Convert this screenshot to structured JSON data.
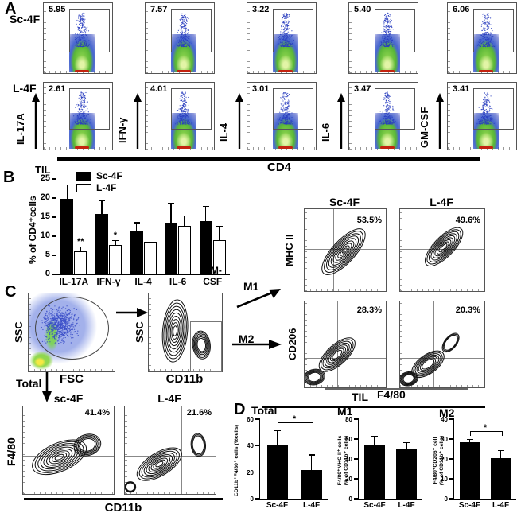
{
  "panel_a": {
    "label": "A",
    "x_label": "CD4",
    "y_labels": [
      "IL-17A",
      "IFN-γ",
      "IL-4",
      "IL-6",
      "GM-CSF"
    ],
    "rows": [
      {
        "row_label": "Sc-4F",
        "percents": [
          "5.95",
          "7.57",
          "3.22",
          "5.40",
          "6.06"
        ]
      },
      {
        "row_label": "L-4F",
        "percents": [
          "2.61",
          "4.01",
          "3.01",
          "3.47",
          "3.41"
        ]
      }
    ]
  },
  "panel_b": {
    "label": "B",
    "title": "TIL"
  },
  "panel_c": {
    "label": "C",
    "gating": {
      "fsc_ylabel": "SSC",
      "fsc_xlabel": "FSC",
      "cd11b_ylabel": "SSC",
      "cd11b_xlabel": "CD11b",
      "total_label": "Total"
    },
    "total_plots": {
      "headers": [
        "sc-4F",
        "L-4F"
      ],
      "percents": [
        "41.4%",
        "21.6%"
      ],
      "ylabel": "F4/80",
      "xlabel": "CD11b"
    },
    "m_plots": {
      "m1_label": "M1",
      "m2_label": "M2",
      "headers": [
        "Sc-4F",
        "L-4F"
      ],
      "mhc": {
        "ylabel": "MHC II",
        "percents": [
          "53.5%",
          "49.6%"
        ]
      },
      "cd206": {
        "ylabel": "CD206",
        "percents": [
          "28.3%",
          "20.3%"
        ]
      },
      "group_label": "TIL",
      "xlabel": "F4/80"
    }
  },
  "panel_d": {
    "label": "D"
  },
  "chart_data": [
    {
      "type": "bar",
      "title": "TIL",
      "ylabel": "% of CD4⁺cells",
      "categories": [
        "IL-17A",
        "IFN-γ",
        "IL-4",
        "IL-6",
        "GM-CSF"
      ],
      "series": [
        {
          "name": "Sc-4F",
          "color": "#000000",
          "values": [
            19.8,
            15.9,
            11.2,
            13.5,
            13.9
          ],
          "errors": [
            3.5,
            3.3,
            2.2,
            5.0,
            3.8
          ]
        },
        {
          "name": "L-4F",
          "color": "#ffffff",
          "values": [
            6.0,
            7.8,
            8.5,
            12.7,
            9.0
          ],
          "errors": [
            1.0,
            0.9,
            0.6,
            2.5,
            3.3
          ]
        }
      ],
      "ylim": [
        0,
        25
      ],
      "yticks": [
        0,
        5,
        10,
        15,
        20,
        25
      ],
      "sig": [
        {
          "category": "IL-17A",
          "label": "**"
        },
        {
          "category": "IFN-γ",
          "label": "*"
        }
      ],
      "legend_position": "top-left",
      "grid": false
    },
    {
      "type": "bar",
      "title": "Total",
      "ylabel_lines": [
        "CD11b⁺F4/80⁺ cells (%cells)"
      ],
      "categories": [
        "Sc-4F",
        "L-4F"
      ],
      "values": [
        41,
        21.5
      ],
      "errors": [
        10,
        11
      ],
      "ylim": [
        0,
        60
      ],
      "yticks": [
        0,
        20,
        40,
        60
      ],
      "sig_bracket": "*",
      "grid": false
    },
    {
      "type": "bar",
      "title": "M1",
      "ylabel_lines": [
        "F4/80⁺MHC II⁺ cells",
        "(% of CD11b⁺ cells)"
      ],
      "categories": [
        "Sc-4F",
        "L-4F"
      ],
      "values": [
        54,
        50.5
      ],
      "errors": [
        8,
        5.5
      ],
      "ylim": [
        0,
        80
      ],
      "yticks": [
        0,
        20,
        40,
        60,
        80
      ],
      "sig_bracket": null,
      "grid": false
    },
    {
      "type": "bar",
      "title": "M2",
      "ylabel_lines": [
        "F4/80⁺CD206⁺ cell",
        "(% of CD11b⁺ cells)"
      ],
      "categories": [
        "Sc-4F",
        "L-4F"
      ],
      "values": [
        28.5,
        20.5
      ],
      "errors": [
        1,
        3.5
      ],
      "ylim": [
        0,
        40
      ],
      "yticks": [
        0,
        10,
        20,
        30,
        40
      ],
      "sig_bracket": "*",
      "grid": false
    }
  ]
}
